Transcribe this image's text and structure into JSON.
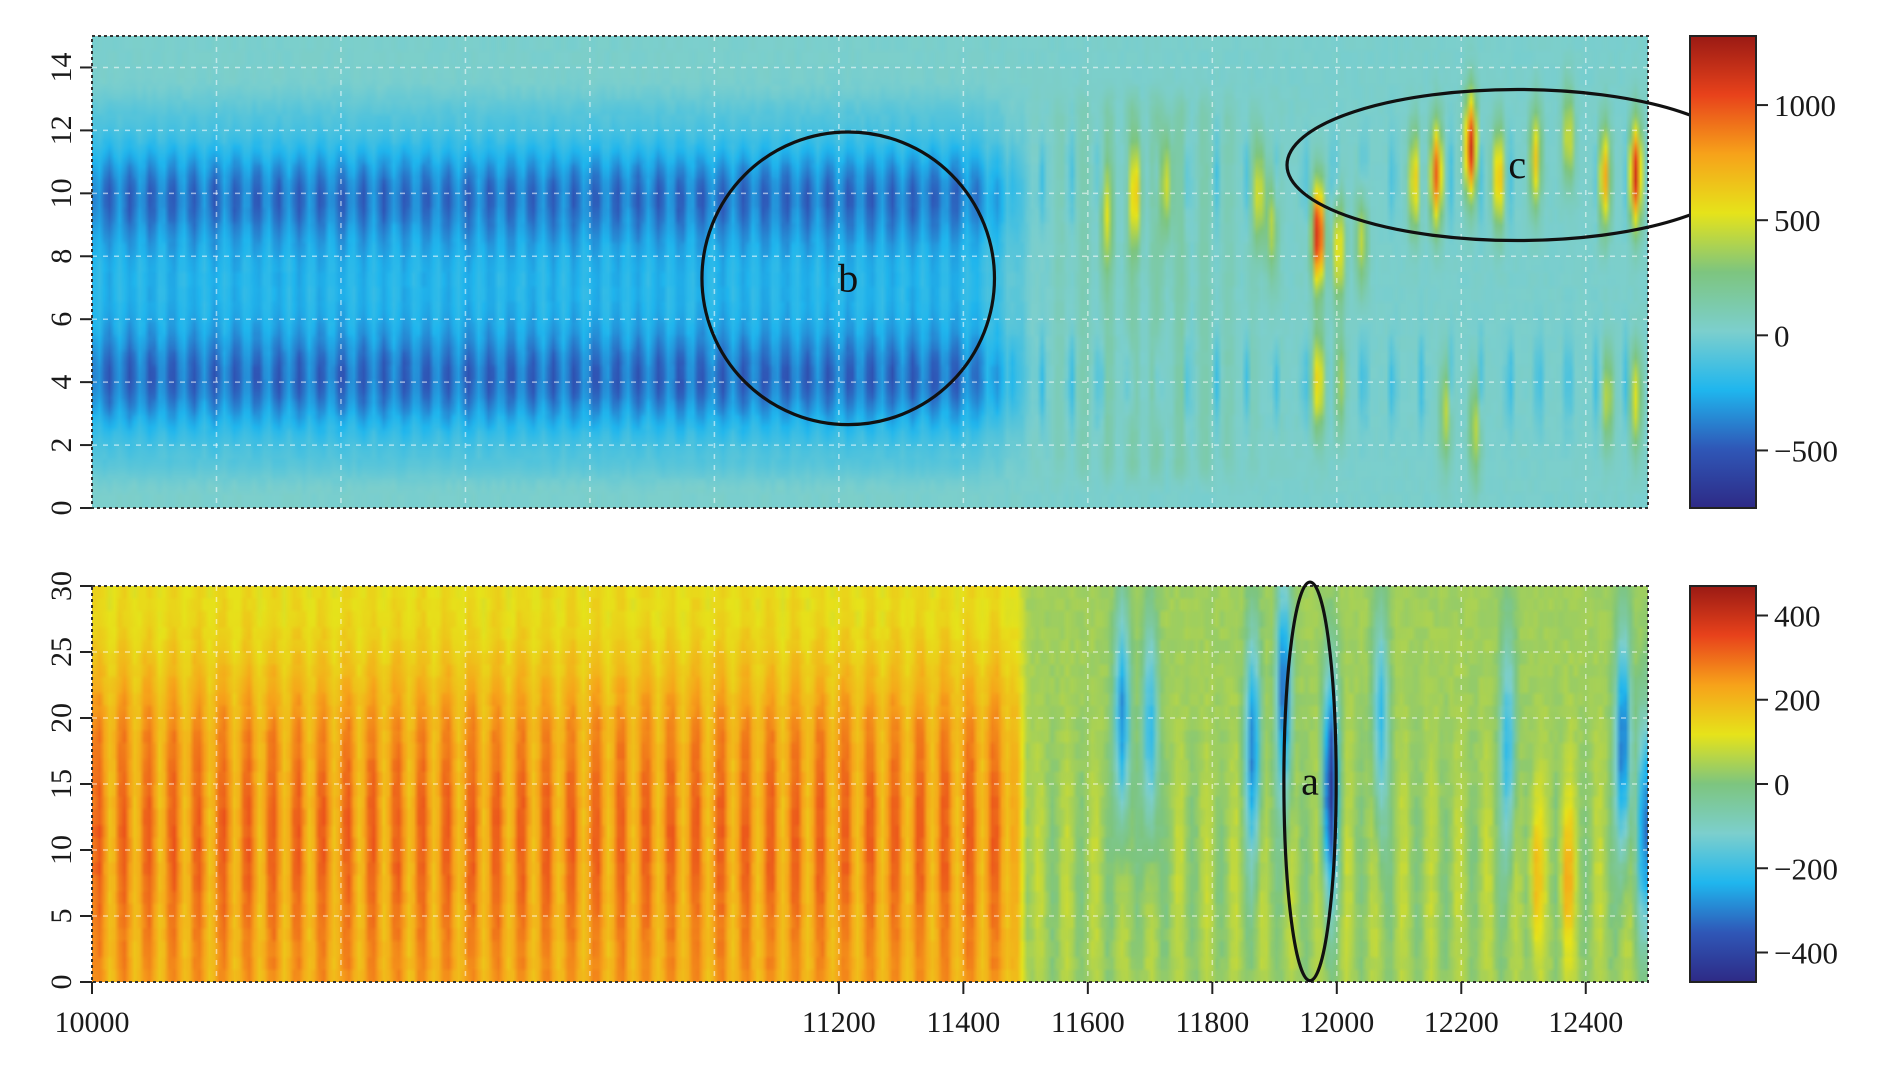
{
  "chart_data": [
    {
      "type": "heatmap",
      "title": "",
      "xlabel": "",
      "ylabel": "",
      "xlim": [
        10000,
        12500
      ],
      "ylim": [
        0,
        15
      ],
      "y_ticks": [
        "0",
        "2",
        "4",
        "6",
        "8",
        "10",
        "12",
        "14"
      ],
      "y_tick_values": [
        0,
        2,
        4,
        6,
        8,
        10,
        12,
        14
      ],
      "grid": true,
      "colorbar": {
        "range": [
          -750,
          1300
        ],
        "ticks": [
          "−500",
          "0",
          "500",
          "1000"
        ],
        "tick_values": [
          -500,
          0,
          500,
          1000
        ],
        "colors": [
          "#2e2a86",
          "#2f57b7",
          "#1fb6ee",
          "#7ccfcd",
          "#7dc57f",
          "#e6e31a",
          "#f7a21a",
          "#e8421b",
          "#9a1a14"
        ]
      },
      "features": {
        "left_region": {
          "x_range": [
            10000,
            11500
          ],
          "value_band_y": [
            2,
            12
          ],
          "stripe_spacing": 34,
          "trough": -520
        },
        "peaks": [
          {
            "x": 11630,
            "y": 9.3,
            "v": 380
          },
          {
            "x": 11675,
            "y": 10.0,
            "v": 600
          },
          {
            "x": 11725,
            "y": 10.3,
            "v": 450
          },
          {
            "x": 11875,
            "y": 10.0,
            "v": 480
          },
          {
            "x": 11895,
            "y": 9.0,
            "v": 380
          },
          {
            "x": 11970,
            "y": 8.7,
            "v": 1200
          },
          {
            "x": 11970,
            "y": 4.0,
            "v": 620
          },
          {
            "x": 12003,
            "y": 8.2,
            "v": 600
          },
          {
            "x": 12003,
            "y": 4.0,
            "v": 400
          },
          {
            "x": 12040,
            "y": 8.6,
            "v": 420
          },
          {
            "x": 12125,
            "y": 10.4,
            "v": 620
          },
          {
            "x": 12160,
            "y": 10.6,
            "v": 950
          },
          {
            "x": 12215,
            "y": 11.5,
            "v": 1100
          },
          {
            "x": 12260,
            "y": 10.5,
            "v": 700
          },
          {
            "x": 12320,
            "y": 11.0,
            "v": 680
          },
          {
            "x": 12372,
            "y": 11.6,
            "v": 550
          },
          {
            "x": 12430,
            "y": 10.5,
            "v": 750
          },
          {
            "x": 12480,
            "y": 10.6,
            "v": 1100
          },
          {
            "x": 12480,
            "y": 3.5,
            "v": 500
          },
          {
            "x": 12175,
            "y": 3.0,
            "v": 400
          },
          {
            "x": 12222,
            "y": 2.5,
            "v": 420
          },
          {
            "x": 12435,
            "y": 3.5,
            "v": 420
          }
        ]
      },
      "annotations": [
        {
          "label": "b",
          "shape": "ellipse",
          "cx": 11215,
          "cy": 7.3,
          "rx": 235,
          "ry": 4.65
        },
        {
          "label": "c",
          "shape": "ellipse",
          "cx": 12290,
          "cy": 10.9,
          "rx": 370,
          "ry": 2.4
        }
      ]
    },
    {
      "type": "heatmap",
      "title": "",
      "xlabel": "",
      "ylabel": "",
      "xlim": [
        10000,
        12500
      ],
      "ylim": [
        0,
        30
      ],
      "x_ticks": [
        "10000",
        "11200",
        "11400",
        "11600",
        "11800",
        "12000",
        "12200",
        "12400"
      ],
      "x_tick_values": [
        10000,
        11200,
        11400,
        11600,
        11800,
        12000,
        12200,
        12400
      ],
      "y_ticks": [
        "0",
        "5",
        "10",
        "15",
        "20",
        "25",
        "30"
      ],
      "y_tick_values": [
        0,
        5,
        10,
        15,
        20,
        25,
        30
      ],
      "grid": true,
      "colorbar": {
        "range": [
          -470,
          470
        ],
        "ticks": [
          "−400",
          "−200",
          "0",
          "200",
          "400"
        ],
        "tick_values": [
          -400,
          -200,
          0,
          200,
          400
        ],
        "colors": [
          "#2e2a86",
          "#2f57b7",
          "#1fb6ee",
          "#7ccfcd",
          "#7dc57f",
          "#e6e31a",
          "#f7a21a",
          "#e8421b",
          "#9a1a14"
        ]
      },
      "features": {
        "left_region": {
          "x_range": [
            10000,
            11500
          ],
          "stripe_spacing": 40,
          "crest": 250
        },
        "troughs": [
          {
            "x": 11655,
            "y": 20.0,
            "v": -330
          },
          {
            "x": 11700,
            "y": 19.0,
            "v": -270
          },
          {
            "x": 11865,
            "y": 18.0,
            "v": -330
          },
          {
            "x": 11915,
            "y": 22.0,
            "v": -380
          },
          {
            "x": 11990,
            "y": 15.0,
            "v": -460
          },
          {
            "x": 12070,
            "y": 20.0,
            "v": -250
          },
          {
            "x": 12275,
            "y": 18.0,
            "v": -250
          },
          {
            "x": 12460,
            "y": 18.0,
            "v": -380
          },
          {
            "x": 12495,
            "y": 12.0,
            "v": -330
          }
        ],
        "crests": [
          {
            "x": 12320,
            "y": 8.0,
            "v": 150
          },
          {
            "x": 12370,
            "y": 8.0,
            "v": 160
          }
        ]
      },
      "annotations": [
        {
          "label": "a",
          "shape": "ellipse",
          "cx": 11957,
          "cy": 15.2,
          "rx": 42,
          "ry": 15.1
        }
      ]
    }
  ]
}
